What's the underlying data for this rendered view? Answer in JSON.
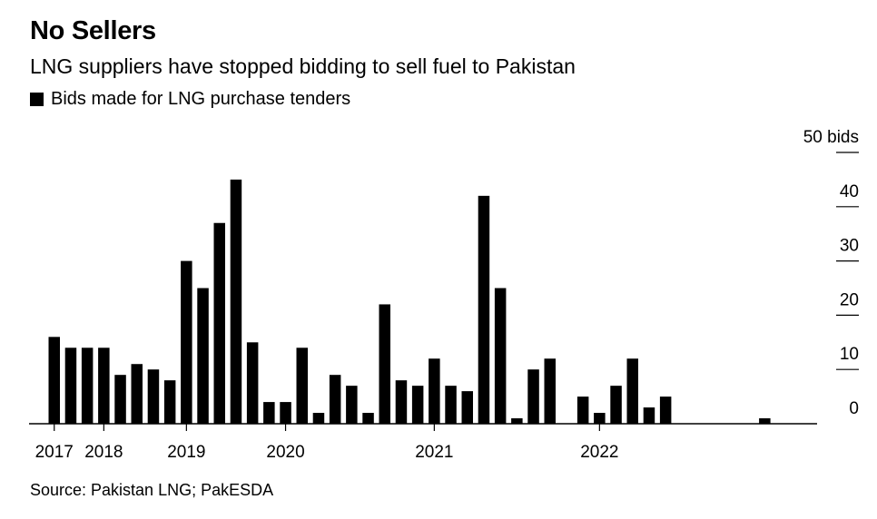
{
  "title": "No Sellers",
  "subtitle": "LNG suppliers have stopped bidding to sell fuel to Pakistan",
  "legend_label": "Bids made for LNG purchase tenders",
  "source": "Source: Pakistan LNG; PakESDA",
  "colors": {
    "bar": "#000000",
    "axis": "#000000",
    "background": "#ffffff"
  },
  "chart_data": {
    "type": "bar",
    "title": "No Sellers",
    "subtitle": "LNG suppliers have stopped bidding to sell fuel to Pakistan",
    "series": [
      {
        "name": "Bids made for LNG purchase tenders",
        "values": [
          16,
          14,
          14,
          14,
          9,
          11,
          10,
          8,
          30,
          25,
          37,
          45,
          15,
          4,
          4,
          14,
          2,
          9,
          7,
          2,
          22,
          8,
          7,
          12,
          7,
          6,
          42,
          25,
          1,
          10,
          12,
          0,
          5,
          2,
          7,
          12,
          3,
          5,
          0,
          0,
          0,
          0,
          0,
          1,
          0,
          0
        ]
      }
    ],
    "x_tick_labels": [
      {
        "label": "2017",
        "bar_index": 0
      },
      {
        "label": "2018",
        "bar_index": 3
      },
      {
        "label": "2019",
        "bar_index": 8
      },
      {
        "label": "2020",
        "bar_index": 14
      },
      {
        "label": "2021",
        "bar_index": 23
      },
      {
        "label": "2022",
        "bar_index": 33
      }
    ],
    "y_ticks": [
      {
        "value": 0,
        "label": "0"
      },
      {
        "value": 10,
        "label": "10"
      },
      {
        "value": 20,
        "label": "20"
      },
      {
        "value": 30,
        "label": "30"
      },
      {
        "value": 40,
        "label": "40"
      },
      {
        "value": 50,
        "label": "50 bids"
      }
    ],
    "ylim": [
      0,
      50
    ],
    "xlabel": "",
    "ylabel": "",
    "grid": false,
    "y_axis_position": "right",
    "legend_position": "top-left"
  }
}
